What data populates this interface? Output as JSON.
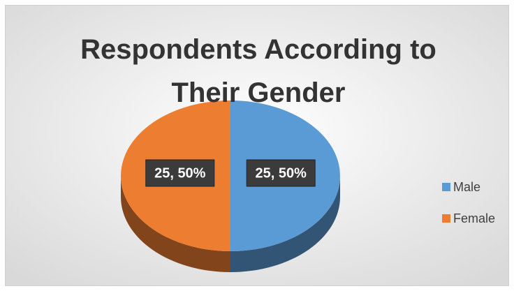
{
  "chart_data": {
    "type": "pie",
    "title": "Respondents According to Their Gender",
    "categories": [
      "Male",
      "Female"
    ],
    "values": [
      25,
      25
    ],
    "value_labels": [
      "25, 50%",
      "25, 50%"
    ],
    "colors": [
      "#5b9bd5",
      "#ed7d31"
    ],
    "legend": "right"
  }
}
